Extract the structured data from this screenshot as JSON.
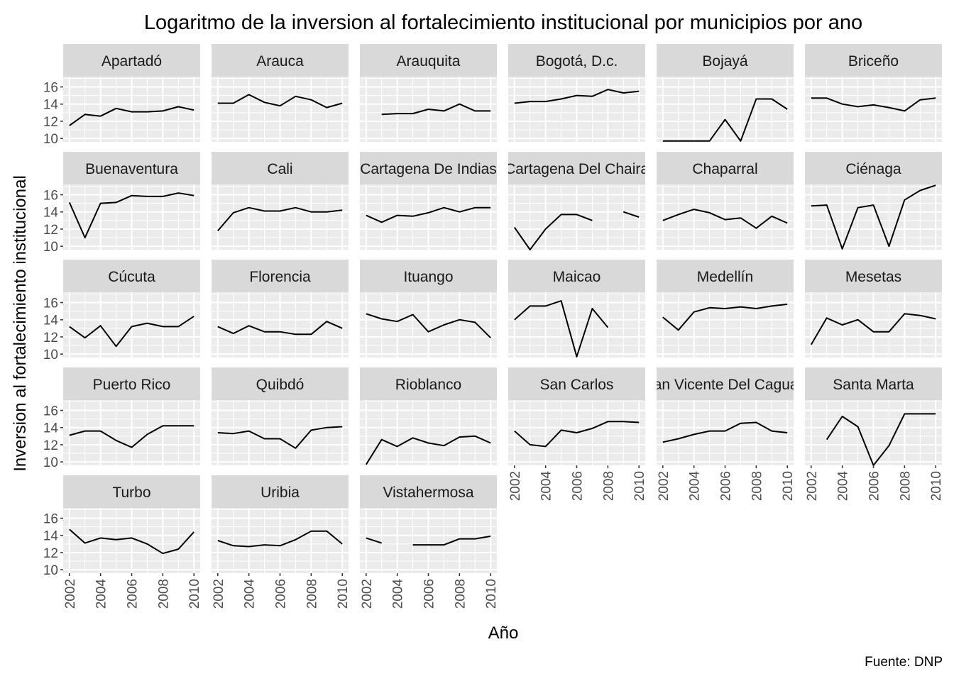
{
  "chart_data": {
    "type": "line",
    "title": "Logaritmo de la inversion al fortalecimiento institucional por municipios por ano",
    "xlabel": "Año",
    "ylabel": "Inversion al fortalecimiento institucional",
    "caption": "Fuente: DNP",
    "x": [
      2002,
      2003,
      2004,
      2005,
      2006,
      2007,
      2008,
      2009,
      2010
    ],
    "x_ticks": [
      "2002",
      "2004",
      "2006",
      "2008",
      "2010"
    ],
    "y_ticks": [
      "10",
      "12",
      "14",
      "16"
    ],
    "xlim": [
      2001.6,
      2010.4
    ],
    "ylim": [
      9.6,
      17.2
    ],
    "line_color": "#000000",
    "panel_background": "#ebebeb",
    "strip_background": "#d9d9d9",
    "grid_color": "#ffffff",
    "series": [
      {
        "name": "Apartadó",
        "values": [
          11.5,
          12.8,
          12.6,
          13.5,
          13.1,
          13.1,
          13.2,
          13.7,
          13.3
        ]
      },
      {
        "name": "Arauca",
        "values": [
          14.1,
          14.1,
          15.1,
          14.2,
          13.8,
          14.9,
          14.5,
          13.6,
          14.1
        ]
      },
      {
        "name": "Arauquita",
        "values": [
          null,
          12.8,
          12.9,
          12.9,
          13.4,
          13.2,
          14.0,
          13.2,
          13.2
        ]
      },
      {
        "name": "Bogotá, D.c.",
        "values": [
          14.1,
          14.3,
          14.3,
          14.6,
          15.0,
          14.9,
          15.7,
          15.3,
          15.5
        ]
      },
      {
        "name": "Bojayá",
        "values": [
          9.7,
          9.7,
          9.7,
          9.7,
          12.2,
          9.7,
          14.6,
          14.6,
          13.4
        ]
      },
      {
        "name": "Briceño",
        "values": [
          14.7,
          14.7,
          14.0,
          13.7,
          13.9,
          13.6,
          13.2,
          14.5,
          14.7
        ]
      },
      {
        "name": "Buenaventura",
        "values": [
          15.1,
          11.0,
          15.0,
          15.1,
          15.9,
          15.8,
          15.8,
          16.2,
          15.9
        ]
      },
      {
        "name": "Cali",
        "values": [
          11.8,
          13.9,
          14.5,
          14.1,
          14.1,
          14.5,
          14.0,
          14.0,
          14.2
        ]
      },
      {
        "name": "Cartagena De Indias",
        "values": [
          13.6,
          12.8,
          13.6,
          13.5,
          13.9,
          14.5,
          14.0,
          14.5,
          14.5
        ]
      },
      {
        "name": "Cartagena Del Chaira",
        "values": [
          12.2,
          9.6,
          12.0,
          13.7,
          13.7,
          13.0,
          null,
          14.0,
          13.4
        ]
      },
      {
        "name": "Chaparral",
        "values": [
          13.0,
          13.7,
          14.3,
          13.9,
          13.1,
          13.3,
          12.1,
          13.5,
          12.7
        ]
      },
      {
        "name": "Ciénaga",
        "values": [
          14.7,
          14.8,
          9.7,
          14.5,
          14.8,
          10.0,
          15.4,
          16.5,
          17.1
        ]
      },
      {
        "name": "Cúcuta",
        "values": [
          13.2,
          11.9,
          13.3,
          10.9,
          13.2,
          13.6,
          13.2,
          13.2,
          14.4
        ]
      },
      {
        "name": "Florencia",
        "values": [
          13.2,
          12.4,
          13.3,
          12.6,
          12.6,
          12.3,
          12.3,
          13.8,
          13.0
        ]
      },
      {
        "name": "Ituango",
        "values": [
          14.7,
          14.1,
          13.8,
          14.6,
          12.6,
          13.4,
          14.0,
          13.7,
          11.9
        ]
      },
      {
        "name": "Maicao",
        "values": [
          14.0,
          15.6,
          15.6,
          16.2,
          9.7,
          15.3,
          13.1,
          null,
          null
        ]
      },
      {
        "name": "Medellín",
        "values": [
          14.3,
          12.8,
          14.9,
          15.4,
          15.3,
          15.5,
          15.3,
          15.6,
          15.8
        ]
      },
      {
        "name": "Mesetas",
        "values": [
          11.1,
          14.2,
          13.4,
          14.0,
          12.6,
          12.6,
          14.7,
          14.5,
          14.1
        ]
      },
      {
        "name": "Puerto Rico",
        "values": [
          13.1,
          13.6,
          13.6,
          12.5,
          11.7,
          13.2,
          14.2,
          14.2,
          14.2
        ]
      },
      {
        "name": "Quibdó",
        "values": [
          13.4,
          13.3,
          13.6,
          12.7,
          12.7,
          11.6,
          13.7,
          14.0,
          14.1
        ]
      },
      {
        "name": "Rioblanco",
        "values": [
          9.7,
          12.6,
          11.8,
          12.8,
          12.2,
          11.9,
          12.9,
          13.0,
          12.2
        ]
      },
      {
        "name": "San Carlos",
        "values": [
          13.6,
          12.0,
          11.8,
          13.7,
          13.4,
          13.9,
          14.7,
          14.7,
          14.6
        ]
      },
      {
        "name": "San Vicente Del Caguan",
        "values": [
          12.3,
          12.7,
          13.2,
          13.6,
          13.6,
          14.5,
          14.6,
          13.6,
          13.4
        ]
      },
      {
        "name": "Santa Marta",
        "values": [
          null,
          12.6,
          15.3,
          14.1,
          9.6,
          11.9,
          15.6,
          15.6,
          15.6
        ]
      },
      {
        "name": "Turbo",
        "values": [
          14.7,
          13.1,
          13.7,
          13.5,
          13.7,
          13.0,
          11.9,
          12.4,
          14.4
        ]
      },
      {
        "name": "Uribia",
        "values": [
          13.4,
          12.8,
          12.7,
          12.9,
          12.8,
          13.5,
          14.5,
          14.5,
          13.0
        ]
      },
      {
        "name": "Vistahermosa",
        "values": [
          13.7,
          13.1,
          null,
          12.9,
          12.9,
          12.9,
          13.6,
          13.6,
          13.9
        ]
      }
    ]
  }
}
